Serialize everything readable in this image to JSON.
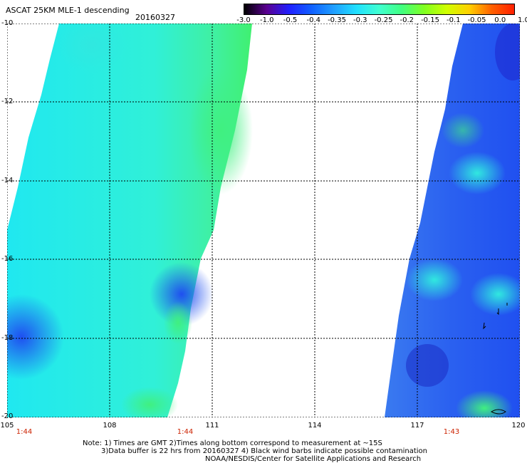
{
  "header": {
    "title": "ASCAT 25KM MLE-1 descending",
    "date": "20160327"
  },
  "colorbar": {
    "labels": [
      "-3.0",
      "-1.0",
      "-0.5",
      "-0.4",
      "-0.35",
      "-0.3",
      "-0.25",
      "-0.2",
      "-0.15",
      "-0.1",
      "-0.05",
      "0.0",
      "1.0"
    ],
    "colors": [
      "#000000",
      "#5a0090",
      "#2020ff",
      "#1060ff",
      "#20a0ff",
      "#20e0ff",
      "#40ffd0",
      "#40ff80",
      "#80ff20",
      "#d0ff00",
      "#ffd000",
      "#ff6000",
      "#ff2000"
    ]
  },
  "axes": {
    "lat_labels": [
      "-10",
      "-12",
      "-14",
      "-16",
      "-18",
      "-20"
    ],
    "lon_labels": [
      "105",
      "108",
      "111",
      "114",
      "117",
      "120"
    ]
  },
  "pass_times": [
    "1:44",
    "1:44",
    "1:43"
  ],
  "notes": {
    "line1": "Note: 1) Times are GMT 2)Times along bottom correspond to measurement at ~15S",
    "line2": "3)Data buffer is 22 hrs from 20160327 4) Black wind barbs indicate possible contamination",
    "line3": "NOAA/NESDIS/Center for Satellite Applications and Research"
  }
}
